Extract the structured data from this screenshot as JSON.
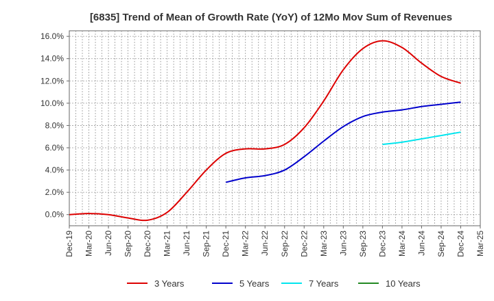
{
  "chart_data": {
    "type": "line",
    "title": "[6835]  Trend of Mean of Growth Rate (YoY) of 12Mo Mov Sum of Revenues",
    "xlabel": "",
    "ylabel": "",
    "ylim": [
      -1.0,
      16.5
    ],
    "yticks": [
      0,
      2,
      4,
      6,
      8,
      10,
      12,
      14,
      16
    ],
    "ytick_labels": [
      "0.0%",
      "2.0%",
      "4.0%",
      "6.0%",
      "8.0%",
      "10.0%",
      "12.0%",
      "14.0%",
      "16.0%"
    ],
    "categories": [
      "Dec-19",
      "Mar-20",
      "Jun-20",
      "Sep-20",
      "Dec-20",
      "Mar-21",
      "Jun-21",
      "Sep-21",
      "Dec-21",
      "Mar-22",
      "Jun-22",
      "Sep-22",
      "Dec-22",
      "Mar-23",
      "Jun-23",
      "Sep-23",
      "Dec-23",
      "Mar-24",
      "Jun-24",
      "Sep-24",
      "Dec-24",
      "Mar-25"
    ],
    "grid": true,
    "legend_position": "bottom",
    "series": [
      {
        "name": "3 Years",
        "color": "#dd0000",
        "values": [
          0.0,
          0.1,
          0.0,
          -0.3,
          -0.5,
          0.2,
          2.0,
          4.0,
          5.5,
          5.9,
          5.9,
          6.3,
          7.8,
          10.2,
          13.0,
          14.9,
          15.6,
          15.0,
          13.6,
          12.4,
          11.8,
          null
        ]
      },
      {
        "name": "5 Years",
        "color": "#0000cc",
        "values": [
          null,
          null,
          null,
          null,
          null,
          null,
          null,
          null,
          2.9,
          3.3,
          3.5,
          4.0,
          5.2,
          6.6,
          7.9,
          8.8,
          9.2,
          9.4,
          9.7,
          9.9,
          10.1,
          null
        ]
      },
      {
        "name": "7 Years",
        "color": "#00e5ee",
        "values": [
          null,
          null,
          null,
          null,
          null,
          null,
          null,
          null,
          null,
          null,
          null,
          null,
          null,
          null,
          null,
          null,
          6.3,
          6.5,
          6.8,
          7.1,
          7.4,
          null
        ]
      },
      {
        "name": "10 Years",
        "color": "#228822",
        "values": [
          null,
          null,
          null,
          null,
          null,
          null,
          null,
          null,
          null,
          null,
          null,
          null,
          null,
          null,
          null,
          null,
          null,
          null,
          null,
          null,
          null,
          null
        ]
      }
    ]
  }
}
